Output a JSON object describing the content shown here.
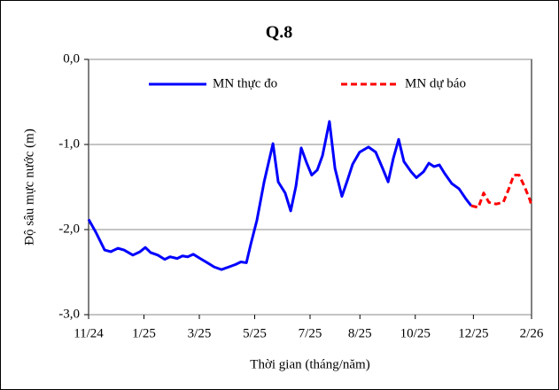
{
  "chart_data": {
    "type": "line",
    "title": "Q.8",
    "x_label": "Thời gian (tháng/năm)",
    "y_label": "Độ sâu mực nước (m)",
    "xlim": [
      0,
      16
    ],
    "xticks": [
      {
        "value": 0,
        "label": "11/24"
      },
      {
        "value": 2,
        "label": "1/25"
      },
      {
        "value": 4,
        "label": "3/25"
      },
      {
        "value": 6,
        "label": "5/25"
      },
      {
        "value": 8,
        "label": "7/25"
      },
      {
        "value": 9.8,
        "label": "8/25"
      },
      {
        "value": 11.8,
        "label": "10/25"
      },
      {
        "value": 13.9,
        "label": "12/25"
      },
      {
        "value": 16,
        "label": "2/26"
      }
    ],
    "ylim": [
      -3,
      0
    ],
    "yticks": [
      {
        "value": 0,
        "label": "0,0"
      },
      {
        "value": -1,
        "label": "-1,0"
      },
      {
        "value": -2,
        "label": "-2,0"
      },
      {
        "value": -3,
        "label": "-3,0"
      }
    ],
    "grid": true,
    "legend": "top",
    "series": [
      {
        "name": "MN thực đo",
        "color": "#0000ff",
        "dashed": false,
        "x": [
          0,
          0.26,
          0.58,
          0.8,
          1.06,
          1.28,
          1.6,
          1.86,
          2.05,
          2.24,
          2.5,
          2.75,
          2.94,
          3.2,
          3.39,
          3.58,
          3.78,
          4.03,
          4.29,
          4.54,
          4.8,
          5.06,
          5.31,
          5.5,
          5.7,
          5.86,
          6.08,
          6.34,
          6.66,
          6.85,
          7.1,
          7.3,
          7.49,
          7.68,
          7.87,
          8.06,
          8.26,
          8.45,
          8.7,
          8.9,
          9.15,
          9.34,
          9.54,
          9.79,
          10.11,
          10.37,
          10.62,
          10.82,
          11.01,
          11.2,
          11.39,
          11.65,
          11.84,
          12.1,
          12.29,
          12.48,
          12.67,
          12.86,
          13.12,
          13.38,
          13.63,
          13.82
        ],
        "values": [
          -1.88,
          -2.03,
          -2.24,
          -2.26,
          -2.22,
          -2.24,
          -2.3,
          -2.26,
          -2.21,
          -2.27,
          -2.3,
          -2.35,
          -2.32,
          -2.34,
          -2.31,
          -2.32,
          -2.29,
          -2.34,
          -2.39,
          -2.44,
          -2.47,
          -2.44,
          -2.41,
          -2.38,
          -2.39,
          -2.17,
          -1.89,
          -1.44,
          -0.99,
          -1.44,
          -1.57,
          -1.78,
          -1.49,
          -1.04,
          -1.21,
          -1.36,
          -1.3,
          -1.13,
          -0.73,
          -1.28,
          -1.61,
          -1.43,
          -1.23,
          -1.09,
          -1.03,
          -1.09,
          -1.28,
          -1.44,
          -1.16,
          -0.94,
          -1.2,
          -1.32,
          -1.39,
          -1.32,
          -1.22,
          -1.26,
          -1.24,
          -1.34,
          -1.46,
          -1.52,
          -1.64,
          -1.72
        ]
      },
      {
        "name": "MN dự báo",
        "color": "#ff0000",
        "dashed": true,
        "x": [
          13.82,
          14.08,
          14.27,
          14.46,
          14.72,
          14.98,
          15.17,
          15.36,
          15.55,
          15.74,
          15.94,
          16
        ],
        "values": [
          -1.72,
          -1.74,
          -1.57,
          -1.68,
          -1.7,
          -1.68,
          -1.53,
          -1.36,
          -1.36,
          -1.49,
          -1.65,
          -1.72
        ]
      }
    ]
  }
}
